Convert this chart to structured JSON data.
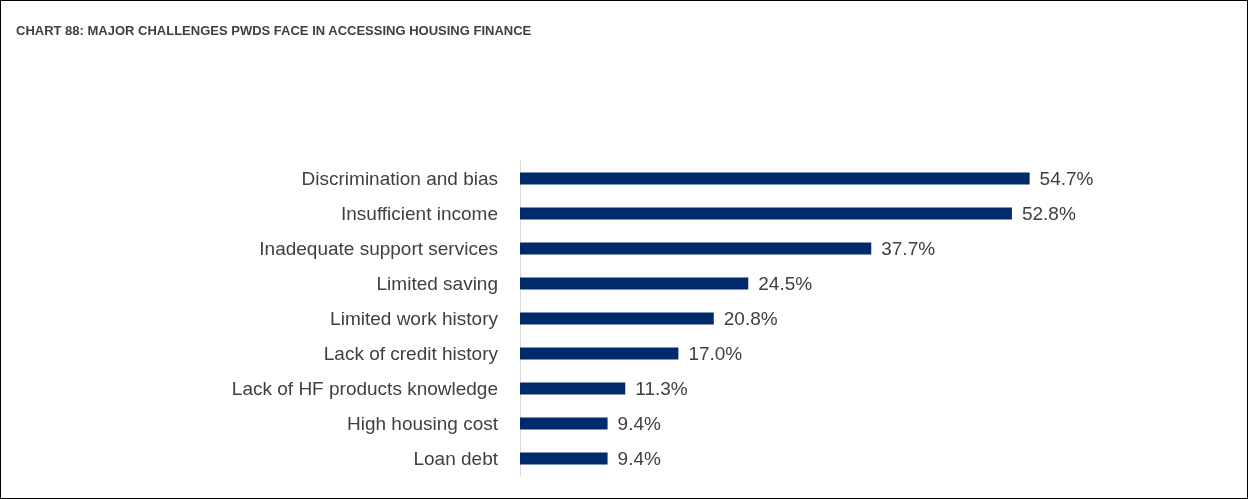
{
  "chart_data": {
    "type": "bar",
    "orientation": "horizontal",
    "title": "CHART 88: MAJOR CHALLENGES PWDS FACE IN ACCESSING HOUSING FINANCE",
    "categories": [
      "Discrimination and bias",
      "Insufficient income",
      "Inadequate support services",
      "Limited saving",
      "Limited work history",
      "Lack of credit history",
      "Lack of HF products knowledge",
      "High housing cost",
      "Loan debt"
    ],
    "values": [
      54.7,
      52.8,
      37.7,
      24.5,
      20.8,
      17.0,
      11.3,
      9.4,
      9.4
    ],
    "value_labels": [
      "54.7%",
      "52.8%",
      "37.7%",
      "24.5%",
      "20.8%",
      "17.0%",
      "11.3%",
      "9.4%",
      "9.4%"
    ],
    "color": "#002b6b"
  }
}
